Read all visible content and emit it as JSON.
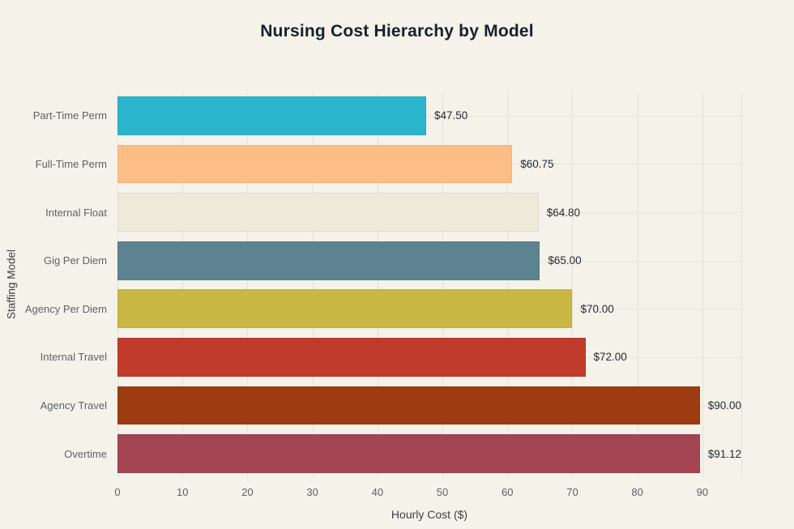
{
  "title": "Nursing Cost Hierarchy by Model",
  "chart_data": {
    "type": "bar",
    "orientation": "horizontal",
    "title": "Nursing Cost Hierarchy by Model",
    "xlabel": "Hourly Cost ($)",
    "ylabel": "Staffing Model",
    "categories": [
      "Part-Time Perm",
      "Full-Time Perm",
      "Internal Float",
      "Gig Per Diem",
      "Agency Per Diem",
      "Internal Travel",
      "Agency Travel",
      "Overtime"
    ],
    "values": [
      47.5,
      60.75,
      64.8,
      65.0,
      70.0,
      72.0,
      90.0,
      91.12
    ],
    "value_labels": [
      "$47.50",
      "$60.75",
      "$64.80",
      "$65.00",
      "$70.00",
      "$72.00",
      "$90.00",
      "$91.12"
    ],
    "bar_colors": [
      "#2ab5cd",
      "#fdbe85",
      "#edead9",
      "#5d8391",
      "#c8b742",
      "#c03b2b",
      "#9c3c10",
      "#a34553"
    ],
    "xlim": [
      0,
      96
    ],
    "xticks": [
      0,
      10,
      20,
      30,
      40,
      50,
      60,
      70,
      80,
      90
    ],
    "grid": true,
    "legend": false
  },
  "colors": {
    "background": "#f5f2ea",
    "grid": "#e5e2d5",
    "title_text": "#14222c",
    "axis_text": "#5d6166",
    "value_text": "#1f2a33"
  }
}
